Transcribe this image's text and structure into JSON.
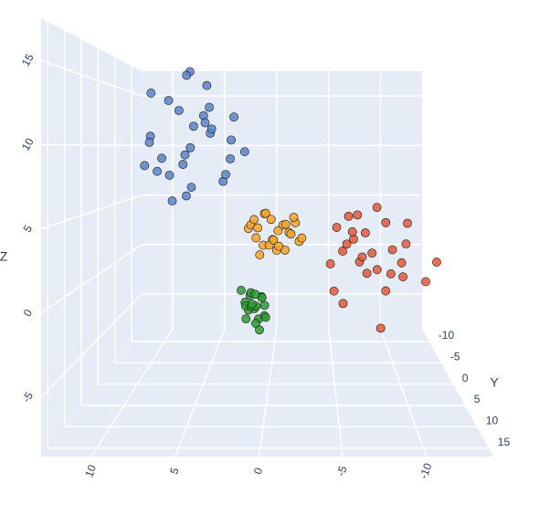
{
  "chart_data": {
    "type": "scatter3d",
    "xlim": [
      -14,
      13
    ],
    "ylim": [
      -13,
      17
    ],
    "zlim": [
      -8.5,
      17.5
    ],
    "xticks": [
      -10,
      -5,
      0,
      5,
      10
    ],
    "yticks": [
      -10,
      -5,
      0,
      5,
      10,
      15
    ],
    "zticks": [
      -5,
      0,
      5,
      10,
      15
    ],
    "ylabel": "Y",
    "zlabel": "Z",
    "grid": true,
    "series": [
      {
        "color": "#5b84c9",
        "x": [
          6.2,
          4.1,
          8.3,
          7.5,
          3.2,
          5.8,
          9.1,
          2.5,
          6.9,
          4.7,
          7.8,
          5.1,
          3.9,
          8.6,
          6.4,
          1.8,
          7.2,
          5.5,
          4.3,
          9.6,
          6.7,
          3.1,
          5.9,
          8.0,
          4.9,
          7.1,
          2.9,
          6.0,
          5.3,
          8.9
        ],
        "y": [
          -1.5,
          2.3,
          -4.1,
          0.8,
          -2.7,
          3.5,
          -0.4,
          1.9,
          -3.3,
          0.2,
          4.1,
          -1.9,
          -3.8,
          2.7,
          -0.9,
          0.6,
          -2.2,
          3.0,
          1.4,
          -0.7,
          -4.5,
          2.0,
          -1.2,
          0.9,
          -2.9,
          1.6,
          -0.3,
          3.8,
          -2.5,
          0.4
        ],
        "z": [
          9.8,
          11.2,
          7.5,
          13.4,
          8.9,
          6.3,
          10.7,
          12.1,
          9.2,
          14.6,
          8.1,
          11.8,
          7.0,
          10.2,
          15.5,
          9.5,
          12.8,
          6.9,
          10.9,
          8.4,
          16.2,
          7.8,
          11.5,
          9.0,
          13.1,
          5.8,
          10.4,
          8.6,
          12.4,
          14.0
        ]
      },
      {
        "color": "#f7a325",
        "x": [
          -0.7,
          0.5,
          -1.9,
          0.9,
          -1.2,
          -0.1,
          -2.3,
          1.4,
          -0.8,
          0.2,
          -1.5,
          0.7,
          -2.0,
          -0.4,
          1.1,
          -1.0,
          0.0,
          -1.7,
          0.4,
          -0.6,
          -2.5,
          1.6,
          -1.3,
          -0.2,
          0.8
        ],
        "y": [
          0.2,
          -1.1,
          0.9,
          1.4,
          -0.6,
          -1.5,
          0.4,
          -0.3,
          1.7,
          0.8,
          -1.2,
          0.0,
          -0.8,
          1.1,
          0.6,
          -1.9,
          -0.4,
          1.5,
          -1.0,
          0.3,
          0.7,
          -0.5,
          1.2,
          -1.4,
          0.9
        ],
        "z": [
          3.4,
          2.1,
          4.5,
          3.0,
          1.8,
          4.1,
          2.6,
          3.8,
          2.4,
          4.8,
          3.1,
          1.5,
          3.9,
          2.8,
          4.3,
          3.6,
          2.2,
          3.3,
          4.6,
          1.9,
          2.9,
          3.5,
          4.0,
          2.5,
          3.7
        ]
      },
      {
        "color": "#2e9b32",
        "x": [
          1.1,
          0.6,
          1.7,
          0.9,
          1.4,
          0.3,
          1.9,
          1.0,
          0.5,
          1.6,
          1.2,
          0.8,
          2.1,
          0.4,
          1.3,
          0.7,
          1.5,
          0.2,
          1.8,
          1.0
        ],
        "y": [
          0.3,
          -0.8,
          0.6,
          1.2,
          -0.4,
          0.9,
          -1.1,
          0.0,
          0.5,
          -0.6,
          1.4,
          -0.2,
          0.2,
          -1.3,
          0.8,
          0.4,
          -0.9,
          1.0,
          -0.3,
          0.7
        ],
        "z": [
          -2.6,
          -1.9,
          -3.3,
          -2.2,
          -1.5,
          -3.0,
          -2.4,
          -3.8,
          -1.7,
          -2.9,
          -2.0,
          -3.5,
          -1.2,
          -2.7,
          -2.3,
          -4.2,
          -1.8,
          -3.1,
          -2.5,
          -1.4
        ]
      },
      {
        "color": "#e4573a",
        "x": [
          -7.7,
          -5.2,
          -9.8,
          -6.4,
          -8.5,
          -4.6,
          -10.6,
          -7.1,
          -6.0,
          -9.1,
          -5.7,
          -8.2,
          -11.4,
          -6.8,
          -7.4,
          -4.9,
          -9.5,
          -8.8,
          -5.5,
          -10.2,
          -7.0,
          -6.2,
          -12.3,
          -8.0,
          -5.9,
          -9.3,
          -6.6,
          -7.9
        ],
        "y": [
          1.8,
          -1.2,
          3.5,
          0.6,
          4.2,
          2.5,
          -0.5,
          5.1,
          1.1,
          2.9,
          -2.0,
          0.2,
          3.8,
          4.6,
          -0.9,
          1.5,
          5.5,
          0.9,
          3.2,
          1.9,
          -1.6,
          2.7,
          3.0,
          6.0,
          0.4,
          -0.2,
          2.2,
          4.0
        ],
        "z": [
          1.9,
          3.5,
          0.4,
          2.8,
          -0.5,
          1.2,
          3.9,
          0.9,
          4.6,
          2.3,
          1.5,
          5.2,
          0.1,
          2.0,
          3.1,
          -1.0,
          1.7,
          4.1,
          -1.6,
          2.6,
          0.7,
          3.6,
          1.4,
          -2.8,
          2.4,
          0.0,
          4.8,
          1.0
        ]
      }
    ]
  }
}
